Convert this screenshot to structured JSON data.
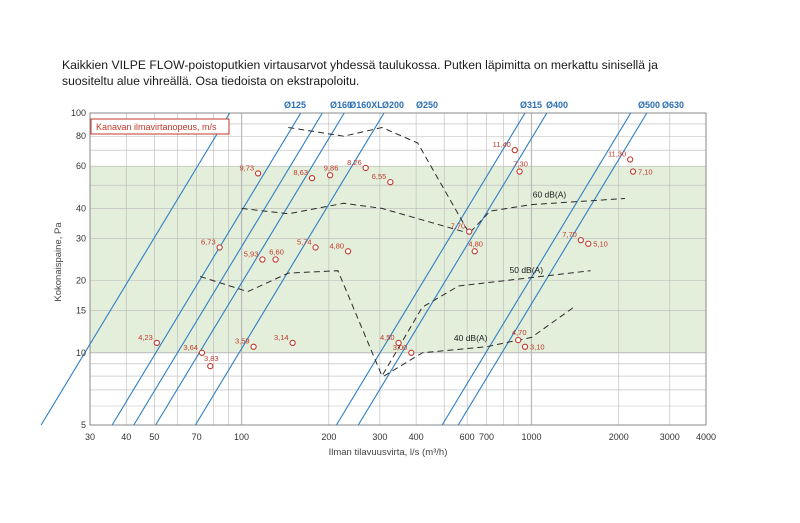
{
  "intro": "Kaikkien VILPE FLOW-poistoputkien virtausarvot yhdessä taulukossa. Putken läpimitta on merkattu sinisellä ja suositeltu alue vihreällä. Osa tiedoista on ekstrapoloitu.",
  "colors": {
    "pipe": "#2f7fc4",
    "point": "#c0392b",
    "green": "#e4efdb",
    "grid": "#b9b9b9",
    "noise": "#2b2b2b"
  },
  "chart_data": {
    "type": "line",
    "xlabel": "Ilman tilavuusvirta, l/s (m³/h)",
    "ylabel": "Kokonaispaine, Pa",
    "x_scale": "log",
    "y_scale": "log",
    "xlim": [
      30,
      4000
    ],
    "ylim": [
      5,
      100
    ],
    "x_ticks": [
      30,
      40,
      50,
      70,
      100,
      200,
      300,
      400,
      600,
      700,
      1000,
      2000,
      3000,
      4000
    ],
    "x_tick_labels": [
      "30",
      "40",
      "50",
      "70",
      "100",
      "200",
      "300",
      "400",
      "600",
      "700",
      "1000",
      "2000",
      "3000",
      "4000"
    ],
    "y_ticks": [
      5,
      10,
      15,
      20,
      30,
      40,
      60,
      80,
      100
    ],
    "y_tick_labels": [
      "5",
      "10",
      "15",
      "20",
      "30",
      "40",
      "60",
      "80",
      "100"
    ],
    "recommended_band": [
      10,
      60
    ],
    "legend": "Kanavan ilmavirtanopeus, m/s",
    "pipes": [
      {
        "label": "Ø125",
        "x_at_100": 91
      },
      {
        "label": "Ø160",
        "x_at_100": 160
      },
      {
        "label": "Ø160XL",
        "x_at_100": 190
      },
      {
        "label": "Ø200",
        "x_at_100": 226
      },
      {
        "label": "Ø250",
        "x_at_100": 310
      },
      {
        "label": "Ø315",
        "x_at_100": 950
      },
      {
        "label": "Ø400",
        "x_at_100": 1130
      },
      {
        "label": "Ø500",
        "x_at_100": 2200
      },
      {
        "label": "Ø630",
        "x_at_100": 2500
      }
    ],
    "points": [
      {
        "label": "4,23",
        "x": 51,
        "y": 11.0,
        "pos": "left"
      },
      {
        "label": "3,64",
        "x": 73,
        "y": 10.0,
        "pos": "left"
      },
      {
        "label": "3,83",
        "x": 78,
        "y": 8.8,
        "pos": "above"
      },
      {
        "label": "6,73",
        "x": 84,
        "y": 27.5,
        "pos": "left"
      },
      {
        "label": "9,73",
        "x": 114,
        "y": 56.0,
        "pos": "left"
      },
      {
        "label": "3,59",
        "x": 110,
        "y": 10.6,
        "pos": "left"
      },
      {
        "label": "5,93",
        "x": 118,
        "y": 24.5,
        "pos": "left"
      },
      {
        "label": "6,60",
        "x": 131,
        "y": 24.5,
        "pos": "above"
      },
      {
        "label": "8,63",
        "x": 175,
        "y": 53.5,
        "pos": "left"
      },
      {
        "label": "5,74",
        "x": 180,
        "y": 27.5,
        "pos": "left"
      },
      {
        "label": "3,14",
        "x": 150,
        "y": 11.0,
        "pos": "left"
      },
      {
        "label": "9,86",
        "x": 202,
        "y": 55.0,
        "pos": "above"
      },
      {
        "label": "8,26",
        "x": 268,
        "y": 59.0,
        "pos": "left"
      },
      {
        "label": "4,80",
        "x": 233,
        "y": 26.5,
        "pos": "left"
      },
      {
        "label": "6,55",
        "x": 326,
        "y": 51.5,
        "pos": "left"
      },
      {
        "label": "4,50",
        "x": 348,
        "y": 11.0,
        "pos": "left"
      },
      {
        "label": "3,00",
        "x": 385,
        "y": 10.0,
        "pos": "left"
      },
      {
        "label": "7,70",
        "x": 610,
        "y": 32.0,
        "pos": "left"
      },
      {
        "label": "4,80",
        "x": 637,
        "y": 26.5,
        "pos": "above"
      },
      {
        "label": "11,40",
        "x": 876,
        "y": 70.0,
        "pos": "left"
      },
      {
        "label": "7,30",
        "x": 910,
        "y": 57.0,
        "pos": "above"
      },
      {
        "label": "4,70",
        "x": 900,
        "y": 11.3,
        "pos": "above"
      },
      {
        "label": "3,10",
        "x": 950,
        "y": 10.6,
        "pos": "right"
      },
      {
        "label": "7,70",
        "x": 1480,
        "y": 29.5,
        "pos": "left"
      },
      {
        "label": "5,10",
        "x": 1570,
        "y": 28.5,
        "pos": "right"
      },
      {
        "label": "11,30",
        "x": 2190,
        "y": 64.0,
        "pos": "left"
      },
      {
        "label": "7,10",
        "x": 2240,
        "y": 57.0,
        "pos": "right"
      }
    ],
    "noise_curves": [
      {
        "label": "60 dB(A)",
        "label_at": [
          1010,
          44.5
        ],
        "x": [
          145,
          225,
          305,
          405,
          610,
          720,
          1000,
          2100
        ],
        "y": [
          87,
          80,
          87,
          75,
          31.5,
          39,
          41.5,
          44
        ]
      },
      {
        "label": "",
        "label_at": [
          0,
          0
        ],
        "x": [
          100,
          145,
          225,
          305,
          610
        ],
        "y": [
          40,
          38,
          42,
          40,
          31.5
        ]
      },
      {
        "label": "50 dB(A)",
        "label_at": [
          840,
          21.5
        ],
        "x": [
          72,
          105,
          145,
          215,
          305,
          420,
          560,
          1600
        ],
        "y": [
          20.8,
          18,
          21.5,
          22,
          8.0,
          15.5,
          19,
          22
        ]
      },
      {
        "label": "40 dB(A)",
        "label_at": [
          540,
          11.2
        ],
        "x": [
          310,
          420,
          700,
          1000,
          1400
        ],
        "y": [
          8.0,
          10.0,
          10.6,
          11.6,
          15.5
        ]
      }
    ]
  }
}
